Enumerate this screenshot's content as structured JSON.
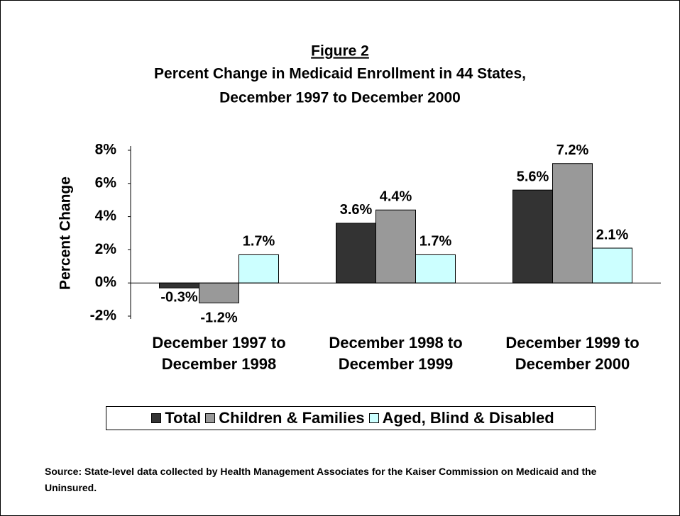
{
  "chart_data": {
    "type": "bar",
    "title": "Figure 2",
    "subtitle": [
      "Percent Change in Medicaid Enrollment in 44 States,",
      "December 1997 to December 2000"
    ],
    "y_label": "Percent Change",
    "categories": [
      "December 1997 to December 1998",
      "December 1998 to December 1999",
      "December 1999 to December 2000"
    ],
    "series": [
      {
        "name": "Total",
        "color": "#333333",
        "values": [
          -0.3,
          3.6,
          5.6
        ],
        "value_labels": [
          "-0.3%",
          "3.6%",
          "5.6%"
        ]
      },
      {
        "name": "Children & Families",
        "color": "#999999",
        "values": [
          -1.2,
          4.4,
          7.2
        ],
        "value_labels": [
          "-1.2%",
          "4.4%",
          "7.2%"
        ]
      },
      {
        "name": "Aged, Blind & Disabled",
        "color": "#ccffff",
        "values": [
          1.7,
          1.7,
          2.1
        ],
        "value_labels": [
          "1.7%",
          "1.7%",
          "2.1%"
        ]
      }
    ],
    "ylim": [
      -2,
      8
    ],
    "yticks": [
      {
        "value": -2,
        "label": "-2%"
      },
      {
        "value": 0,
        "label": "0%"
      },
      {
        "value": 2,
        "label": "2%"
      },
      {
        "value": 4,
        "label": "4%"
      },
      {
        "value": 6,
        "label": "6%"
      },
      {
        "value": 8,
        "label": "8%"
      }
    ],
    "legend": "bottom",
    "source": "Source: State-level data collected by Health Management Associates for the Kaiser Commission on Medicaid and the Uninsured."
  }
}
